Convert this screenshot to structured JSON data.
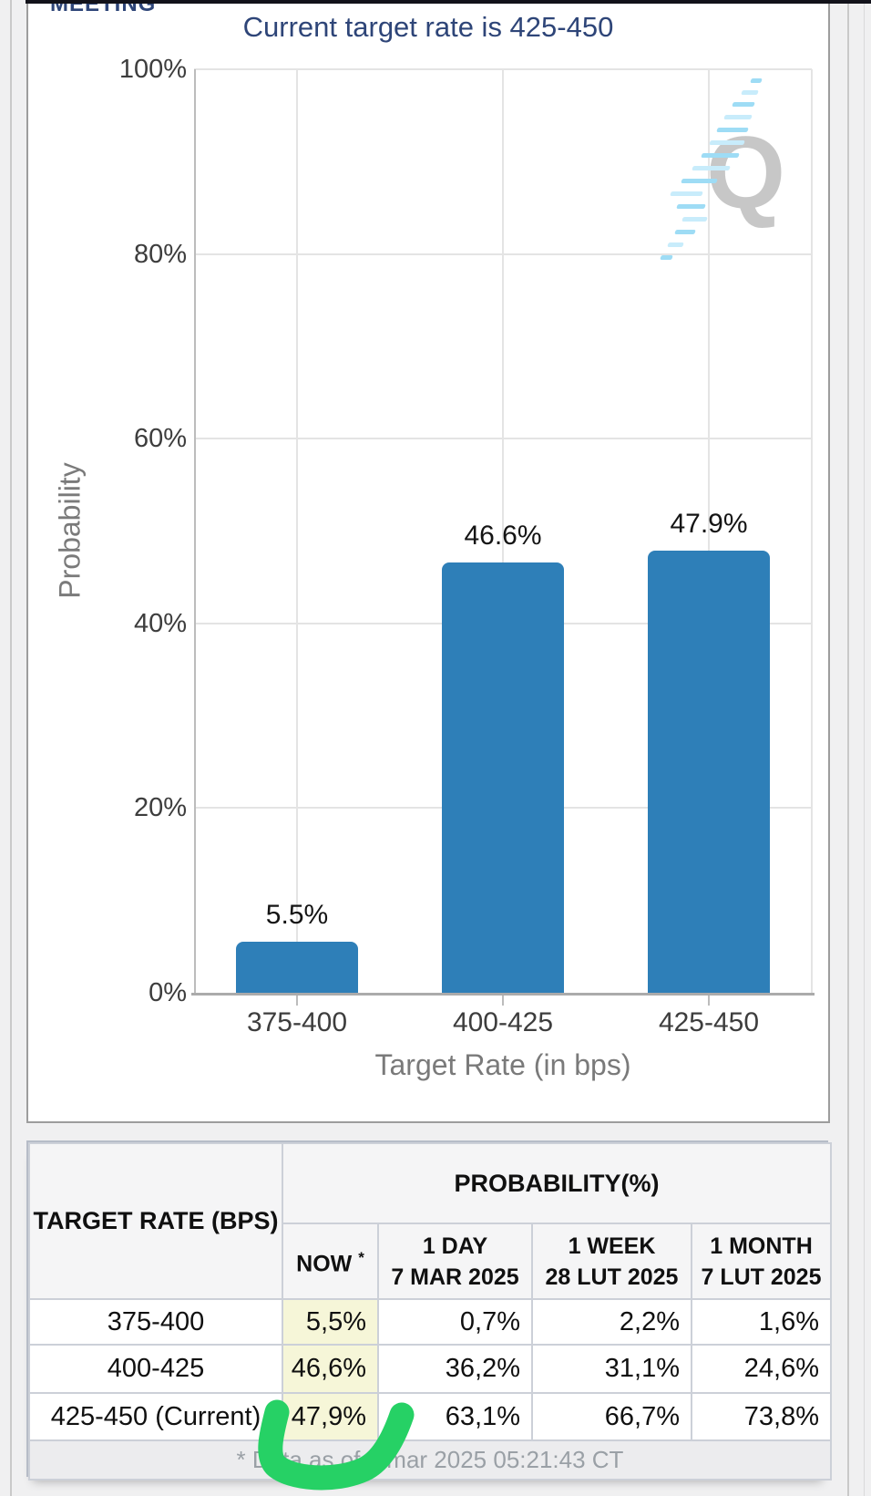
{
  "meeting_label": "MEETING",
  "chart_data": {
    "type": "bar",
    "title": "Current target rate is 425-450",
    "ylabel": "Probability",
    "xlabel": "Target Rate (in bps)",
    "categories": [
      "375-400",
      "400-425",
      "425-450"
    ],
    "values": [
      5.5,
      46.6,
      47.9
    ],
    "value_labels": [
      "5.5%",
      "46.6%",
      "47.9%"
    ],
    "ylim": [
      0,
      100
    ],
    "yticks": [
      0,
      20,
      40,
      60,
      80,
      100
    ],
    "ytick_suffix": "%",
    "grid": true,
    "legend": false,
    "bar_color": "#2e7fb8",
    "title_color": "#2e4578"
  },
  "watermark": {
    "letter": "Q"
  },
  "table": {
    "corner_header": "TARGET RATE (BPS)",
    "group_header": "PROBABILITY(%)",
    "columns": [
      {
        "line1": "NOW",
        "sup": "*",
        "line2": ""
      },
      {
        "line1": "1 DAY",
        "line2": "7 MAR 2025"
      },
      {
        "line1": "1 WEEK",
        "line2": "28 LUT 2025"
      },
      {
        "line1": "1 MONTH",
        "line2": "7 LUT 2025"
      }
    ],
    "rows": [
      {
        "label": "375-400",
        "now": "5,5%",
        "day1": "0,7%",
        "week1": "2,2%",
        "month1": "1,6%"
      },
      {
        "label": "400-425",
        "now": "46,6%",
        "day1": "36,2%",
        "week1": "31,1%",
        "month1": "24,6%"
      },
      {
        "label": "425-450 (Current)",
        "now": "47,9%",
        "day1": "63,1%",
        "week1": "66,7%",
        "month1": "73,8%"
      }
    ],
    "footnote": "* Data as of 8 mar 2025 05:21:43 CT",
    "now_highlight_color": "#f6f6d8"
  },
  "annotation": {
    "shape": "hand-drawn highlight around 47,9%",
    "color": "#26d165"
  }
}
